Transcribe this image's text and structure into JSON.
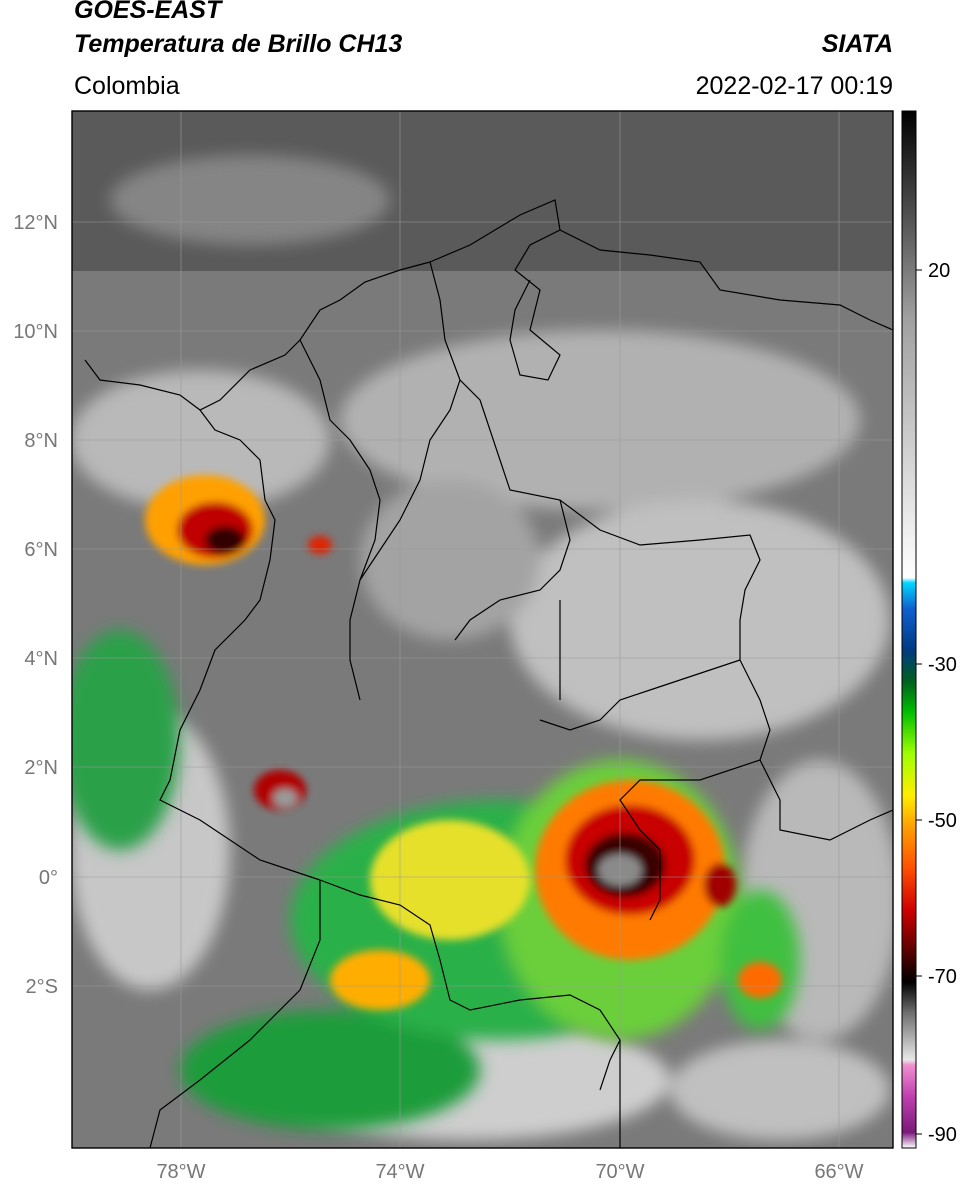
{
  "header": {
    "satellite": "GOES-EAST",
    "product": "Temperatura de Brillo CH13",
    "source": "SIATA",
    "region": "Colombia",
    "timestamp": "2022-02-17 00:19"
  },
  "map": {
    "lat_labels": [
      "12°N",
      "10°N",
      "8°N",
      "6°N",
      "4°N",
      "2°N",
      "0°",
      "2°S"
    ],
    "lon_labels": [
      "78°W",
      "74°W",
      "70°W",
      "66°W"
    ]
  },
  "colorbar": {
    "tick_labels": [
      "20",
      "-30",
      "-50",
      "-70",
      "-90"
    ],
    "colors": [
      "#ffffff",
      "#9a2a9a",
      "#e060c0",
      "#d0d0d0",
      "#606060",
      "#000000",
      "#8b0000",
      "#ff4000",
      "#ffa000",
      "#ffff00",
      "#80ff00",
      "#00a000",
      "#003080",
      "#00c0ff"
    ]
  }
}
